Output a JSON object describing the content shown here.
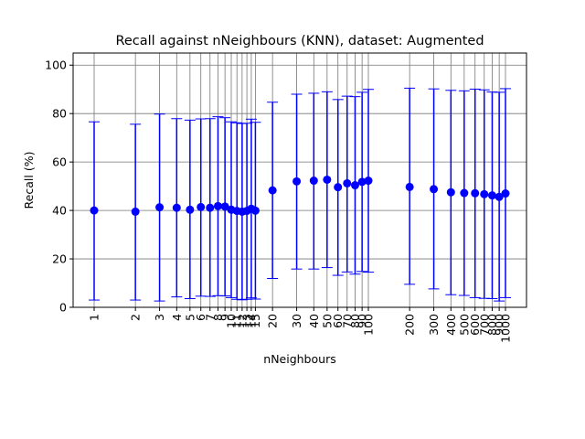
{
  "chart_data": {
    "type": "scatter",
    "title": "Recall against nNeighbours (KNN), dataset: Augmented",
    "xlabel": "nNeighbours",
    "ylabel": "Recall (%)",
    "x_scale": "log",
    "ylim": [
      0,
      105
    ],
    "yticks": [
      0,
      20,
      40,
      60,
      80,
      100
    ],
    "grid": true,
    "color": "#0000ff",
    "series": [
      {
        "x": [
          1,
          2,
          3,
          4,
          5,
          6,
          7,
          8,
          9,
          10,
          11,
          12,
          13,
          14,
          15,
          20,
          30,
          40,
          50,
          60,
          70,
          80,
          90,
          100,
          200,
          300,
          400,
          500,
          600,
          700,
          800,
          900,
          1000
        ],
        "x_labels": [
          "1",
          "2",
          "3",
          "4",
          "5",
          "6",
          "7",
          "8",
          "9",
          "10",
          "11",
          "12",
          "13",
          "14",
          "15",
          "20",
          "30",
          "40",
          "50",
          "60",
          "70",
          "80",
          "90",
          "100",
          "200",
          "300",
          "400",
          "500",
          "600",
          "700",
          "800",
          "900",
          "1000"
        ],
        "y": [
          40.0,
          39.5,
          41.3,
          41.1,
          40.3,
          41.4,
          41.1,
          41.8,
          41.6,
          40.3,
          39.8,
          39.5,
          39.8,
          40.7,
          39.9,
          48.3,
          52.0,
          52.3,
          52.7,
          49.6,
          51.2,
          50.4,
          51.8,
          52.3,
          49.7,
          48.8,
          47.5,
          47.2,
          47.1,
          46.7,
          46.2,
          45.6,
          47.0
        ],
        "y_low": [
          3.0,
          3.0,
          2.6,
          4.3,
          3.6,
          4.6,
          4.5,
          4.8,
          4.7,
          4.0,
          3.3,
          3.1,
          3.3,
          3.9,
          3.4,
          11.9,
          15.8,
          15.8,
          16.4,
          13.2,
          14.6,
          13.7,
          14.8,
          14.5,
          9.5,
          7.6,
          5.2,
          4.9,
          4.0,
          3.7,
          3.6,
          2.6,
          4.0
        ],
        "y_high": [
          76.6,
          75.6,
          79.8,
          77.9,
          77.3,
          77.8,
          77.9,
          78.7,
          78.3,
          76.6,
          76.2,
          75.9,
          76.0,
          77.7,
          76.4,
          84.7,
          88.0,
          88.4,
          89.0,
          85.8,
          87.2,
          87.0,
          88.8,
          90.0,
          90.5,
          90.2,
          89.6,
          89.4,
          90.1,
          89.8,
          88.9,
          88.8,
          90.3
        ]
      }
    ]
  }
}
